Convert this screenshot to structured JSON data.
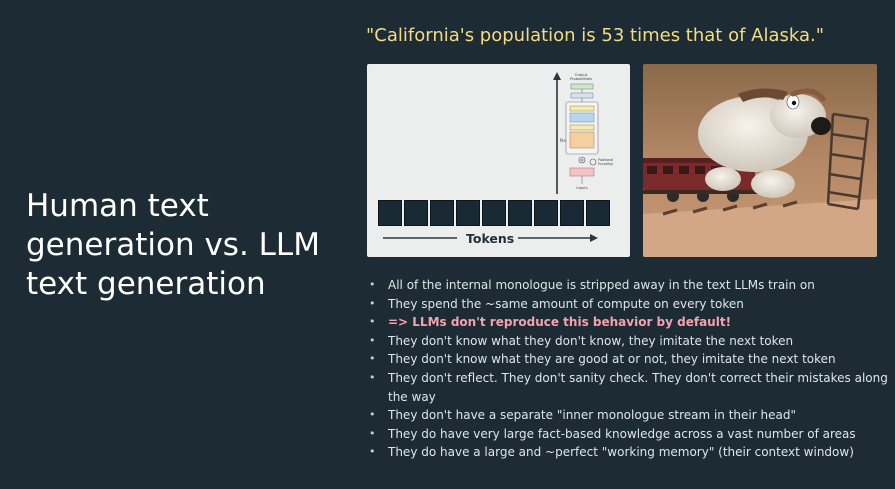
{
  "slide": {
    "title": "Human text generation vs. LLM text generation",
    "quote": "\"California's population is 53 times that of Alaska.\""
  },
  "diagram": {
    "tokens_label": "Tokens",
    "token_count": 9,
    "mini_labels": [
      "Output Probabilities",
      "Softmax",
      "Linear",
      "Add & Norm",
      "Feed Forward",
      "Add & Norm",
      "Masked Multi-Head Attention",
      "Positional Encoding",
      "Input Embedding",
      "Inputs"
    ]
  },
  "image": {
    "icon": "claymation-dog-laying-train-track-icon"
  },
  "bullets": [
    {
      "text": "All of the internal monologue is stripped away in the text LLMs train on",
      "highlight": false
    },
    {
      "text": "They spend the ~same amount of compute on every token",
      "highlight": false
    },
    {
      "text": "=> LLMs don't reproduce this behavior by default!",
      "highlight": true
    },
    {
      "text": "They don't know what they don't know, they imitate the next token",
      "highlight": false
    },
    {
      "text": "They don't know what they are good at or not, they imitate the next token",
      "highlight": false
    },
    {
      "text": "They don't reflect. They don't sanity check. They don't correct their mistakes along the way",
      "highlight": false
    },
    {
      "text": "They don't have a separate \"inner monologue stream in their head\"",
      "highlight": false
    },
    {
      "text": "They do have very large fact-based knowledge across a vast number of areas",
      "highlight": false
    },
    {
      "text": "They do have a large and ~perfect \"working memory\" (their context window)",
      "highlight": false
    }
  ],
  "colors": {
    "background": "#1d2b34",
    "quote": "#f2dd86",
    "highlight": "#f2a3b0"
  }
}
